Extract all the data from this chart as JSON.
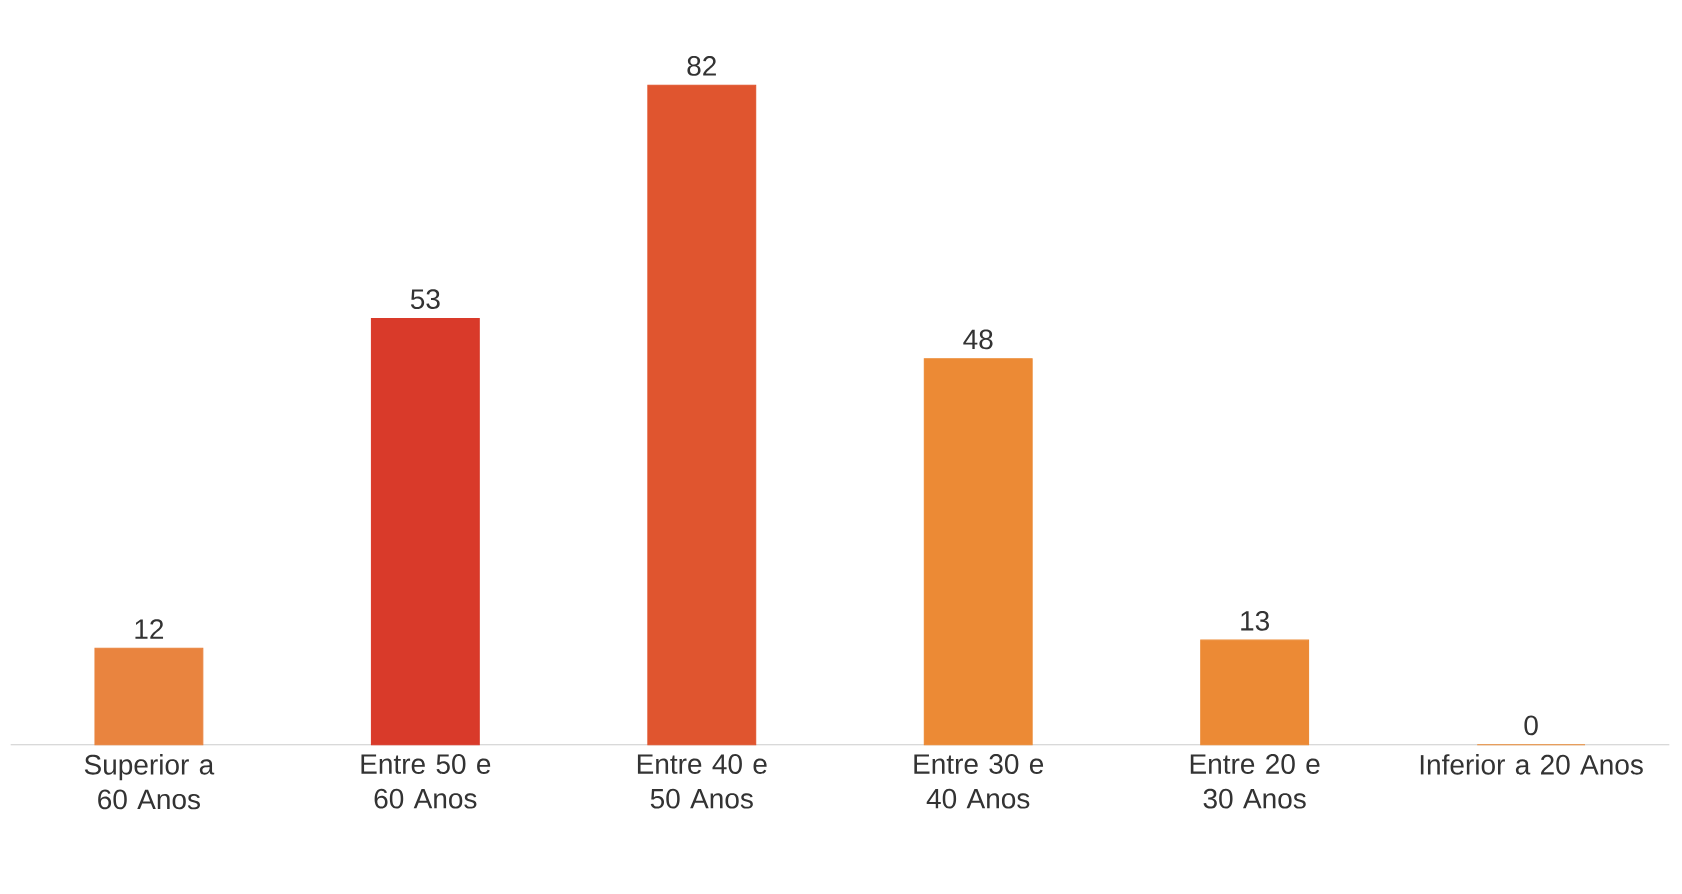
{
  "chart_data": {
    "type": "bar",
    "categories": [
      "Superior a 60 Anos",
      "Entre 50 e 60 Anos",
      "Entre 40 e 50 Anos",
      "Entre 30 e 40 Anos",
      "Entre 20 e 30 Anos",
      "Inferior a 20 Anos"
    ],
    "values": [
      12,
      53,
      82,
      48,
      13,
      0
    ],
    "colors": [
      "#e9843f",
      "#d93a2a",
      "#e0552f",
      "#ec8a35",
      "#ec8a35",
      "#ec8a35"
    ],
    "data_labels": true
  }
}
